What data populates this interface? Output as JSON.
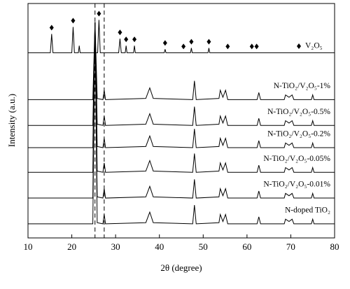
{
  "chart_data": {
    "type": "line",
    "xlabel": "2θ (degree)",
    "ylabel": "Intensity (a.u.)",
    "xlim": [
      10,
      80
    ],
    "xticks": [
      10,
      20,
      30,
      40,
      50,
      60,
      70,
      80
    ],
    "ylim": [
      0,
      100
    ],
    "reference_lines": [
      25.3,
      27.4
    ],
    "diamond_markers": [
      15.4,
      20.3,
      26.2,
      31.0,
      32.4,
      34.3,
      41.3,
      45.5,
      47.3,
      51.3,
      55.6,
      61.1,
      62.2
    ],
    "legend": "V₂O₅",
    "series": [
      {
        "name": "V₂O₅",
        "color": "#000000",
        "x": [
          10,
          15.1,
          15.4,
          15.7,
          20.0,
          20.3,
          20.6,
          21.5,
          21.7,
          21.9,
          25.9,
          26.2,
          26.5,
          30.7,
          31.0,
          31.3,
          32.2,
          32.4,
          32.6,
          34.1,
          34.3,
          34.5,
          41.1,
          41.3,
          41.5,
          47.1,
          47.3,
          47.5,
          51.1,
          51.3,
          51.5,
          80
        ],
        "values": [
          79,
          79,
          87,
          79,
          79,
          90,
          79,
          79,
          82,
          79,
          79,
          93,
          79,
          79,
          85,
          79,
          79,
          82,
          79,
          79,
          82,
          79,
          79,
          80.5,
          79,
          79,
          81,
          79,
          79,
          81,
          79,
          79
        ]
      },
      {
        "name": "N-TiO₂/V₂O₅-1%",
        "color": "#000000",
        "x": [
          10,
          24.8,
          25.3,
          25.8,
          27.1,
          27.4,
          27.7,
          36.9,
          37.8,
          38.6,
          47.6,
          48.0,
          48.4,
          53.6,
          53.9,
          54.5,
          55.1,
          55.6,
          62.3,
          62.7,
          63.1,
          68.5,
          68.8,
          69.6,
          70.3,
          70.7,
          74.7,
          75.0,
          75.3,
          80
        ],
        "values": [
          59,
          59,
          92,
          59.5,
          59,
          63,
          59,
          59.5,
          64,
          59.5,
          59,
          67,
          59,
          59.5,
          63,
          60,
          63,
          59,
          59,
          62,
          59,
          59,
          61,
          60,
          61,
          59,
          59,
          61,
          59,
          59
        ]
      },
      {
        "name": "N-TiO₂/V₂O₅-0.5%",
        "color": "#000000",
        "x": [
          10,
          24.8,
          25.3,
          25.8,
          27.1,
          27.4,
          27.7,
          36.9,
          37.8,
          38.6,
          47.6,
          48.0,
          48.4,
          53.6,
          53.9,
          54.5,
          55.1,
          55.6,
          62.3,
          62.7,
          63.1,
          68.5,
          68.8,
          69.6,
          70.3,
          70.7,
          74.7,
          75.0,
          75.3,
          80
        ],
        "values": [
          48,
          48,
          92,
          48.5,
          48,
          52,
          48,
          48.5,
          53,
          48.5,
          48,
          56,
          48,
          48.5,
          52,
          49,
          52,
          48,
          48,
          51,
          48,
          48,
          50,
          49,
          50,
          48,
          48,
          50,
          48,
          48
        ]
      },
      {
        "name": "N-TiO₂/V₂O₅-0.2%",
        "color": "#000000",
        "x": [
          10,
          24.8,
          25.3,
          25.8,
          27.1,
          27.4,
          27.7,
          36.9,
          37.8,
          38.6,
          47.6,
          48.0,
          48.4,
          53.6,
          53.9,
          54.5,
          55.1,
          55.6,
          62.3,
          62.7,
          63.1,
          68.5,
          68.8,
          69.6,
          70.3,
          70.7,
          74.7,
          75.0,
          75.3,
          80
        ],
        "values": [
          38.5,
          38.5,
          92,
          39,
          38.5,
          42.5,
          38.5,
          39,
          43.5,
          39,
          38.5,
          46.5,
          38.5,
          39,
          42.5,
          39.5,
          42.5,
          38.5,
          38.5,
          41.5,
          38.5,
          38.5,
          40.5,
          39.5,
          40.5,
          38.5,
          38.5,
          40.5,
          38.5,
          38.5
        ]
      },
      {
        "name": "N-TiO₂/V₂O₅-0.05%",
        "color": "#000000",
        "x": [
          10,
          24.8,
          25.3,
          25.8,
          27.1,
          27.4,
          27.7,
          36.9,
          37.8,
          38.6,
          47.6,
          48.0,
          48.4,
          53.6,
          53.9,
          54.5,
          55.1,
          55.6,
          62.3,
          62.7,
          63.1,
          68.5,
          68.8,
          69.6,
          70.3,
          70.7,
          74.7,
          75.0,
          75.3,
          80
        ],
        "values": [
          28,
          28,
          92,
          28.5,
          28,
          32,
          28,
          28.5,
          33,
          28.5,
          28,
          36,
          28,
          28.5,
          32,
          29,
          32,
          28,
          28,
          31,
          28,
          28,
          30,
          29,
          30,
          28,
          28,
          30,
          28,
          28
        ]
      },
      {
        "name": "N-TiO₂/V₂O₅-0.01%",
        "color": "#000000",
        "x": [
          10,
          24.8,
          25.3,
          25.8,
          27.1,
          27.4,
          27.7,
          36.9,
          37.8,
          38.6,
          47.6,
          48.0,
          48.4,
          53.6,
          53.9,
          54.5,
          55.1,
          55.6,
          62.3,
          62.7,
          63.1,
          68.5,
          68.8,
          69.6,
          70.3,
          70.7,
          74.7,
          75.0,
          75.3,
          80
        ],
        "values": [
          17,
          17,
          92,
          17.5,
          17,
          21,
          17,
          17.5,
          22,
          17.5,
          17,
          25,
          17,
          17.5,
          21,
          18,
          21,
          17,
          17,
          20,
          17,
          17,
          19,
          18,
          19,
          17,
          17,
          19,
          17,
          17
        ]
      },
      {
        "name": "N-doped TiO₂",
        "color": "#000000",
        "x": [
          10,
          24.8,
          25.3,
          25.8,
          27.1,
          27.4,
          27.7,
          36.9,
          37.8,
          38.6,
          47.6,
          48.0,
          48.4,
          53.6,
          53.9,
          54.5,
          55.1,
          55.6,
          62.3,
          62.7,
          63.1,
          68.5,
          68.8,
          69.6,
          70.3,
          70.7,
          74.7,
          75.0,
          75.3,
          80
        ],
        "values": [
          6,
          6,
          92,
          6.5,
          6,
          10,
          6,
          6.5,
          11,
          6.5,
          6,
          14,
          6,
          6.5,
          10,
          7,
          10,
          6,
          6,
          9,
          6,
          6,
          8,
          7,
          8,
          6,
          6,
          8,
          6,
          6
        ]
      }
    ]
  }
}
